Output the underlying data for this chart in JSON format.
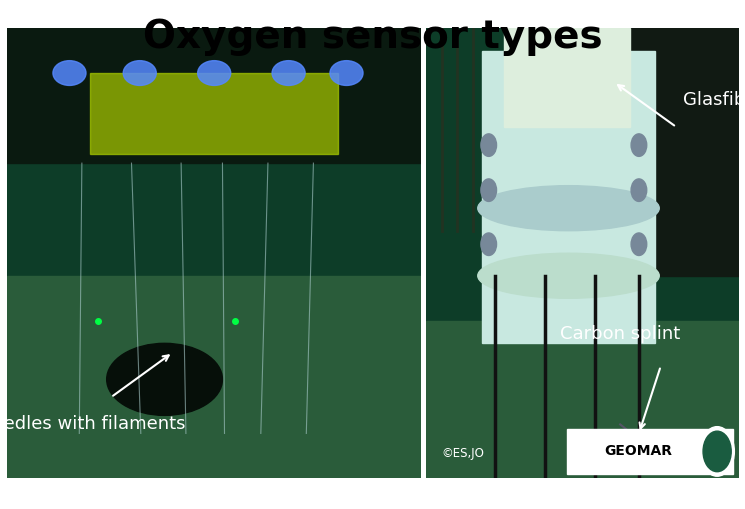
{
  "title": "Oxygen sensor types",
  "title_fontsize": 28,
  "title_fontweight": "bold",
  "title_color": "#000000",
  "background_color": "#ffffff",
  "label_left": "Needles with filaments",
  "label_right_top": "Glasfiber",
  "label_right_bottom": "Carbon splint",
  "credit_text": "©ES,JO",
  "geomar_text": "GEOMAR",
  "label_color": "#ffffff",
  "label_fontsize": 13,
  "figwidth": 7.45,
  "figheight": 5.09,
  "dpi": 100
}
